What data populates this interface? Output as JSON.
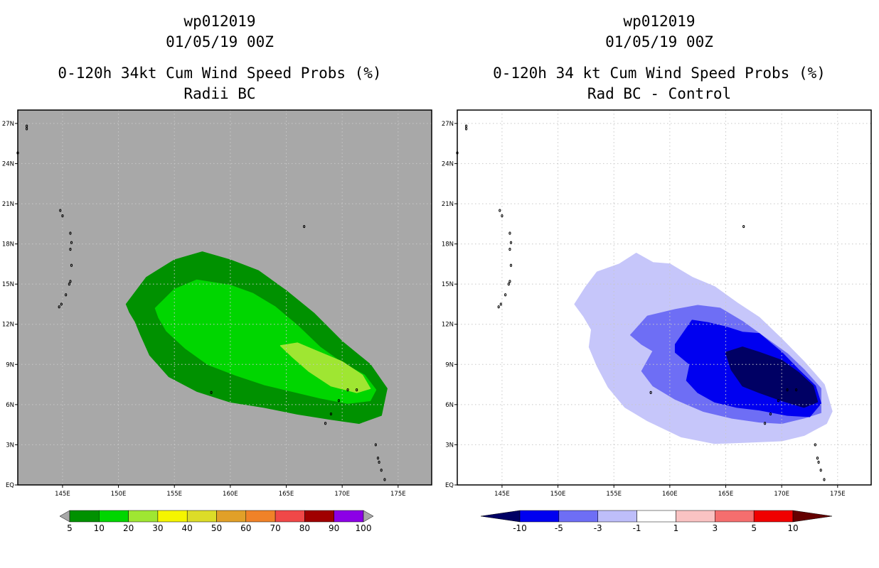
{
  "chart_data": [
    {
      "type": "heatmap",
      "title_lines": [
        "wp012019",
        "01/05/19 00Z",
        "0-120h 34kt Cum Wind Speed Probs (%)",
        "Radii BC"
      ],
      "x_ticks": [
        "145E",
        "150E",
        "155E",
        "160E",
        "165E",
        "170E",
        "175E"
      ],
      "y_ticks": [
        "EQ",
        "3N",
        "6N",
        "9N",
        "12N",
        "15N",
        "18N",
        "21N",
        "24N",
        "27N"
      ],
      "xlim": [
        141,
        178
      ],
      "ylim": [
        0,
        28
      ],
      "background_color": "#a8a8a8",
      "colorbar": {
        "labels": [
          "5",
          "10",
          "20",
          "30",
          "40",
          "50",
          "60",
          "70",
          "80",
          "90",
          "100"
        ],
        "colors": [
          "#009100",
          "#00d600",
          "#9fe632",
          "#f5f500",
          "#dcdc28",
          "#e1a028",
          "#f08228",
          "#f04848",
          "#a00000",
          "#8c00e6"
        ],
        "under_color": "#a8a8a8",
        "over_color": "#a8a8a8"
      },
      "contours": [
        {
          "level": "5-10",
          "color": "#009100",
          "lon": [
            150.7,
            152.5,
            155,
            157.5,
            160,
            162.5,
            165,
            167.5,
            170,
            172.5,
            174,
            173.5,
            171.5,
            169,
            166,
            163,
            160,
            157,
            154.5,
            152.8,
            152,
            151.5,
            151,
            150.8,
            150.7
          ],
          "lat": [
            13.5,
            15.5,
            16.8,
            17.4,
            16.8,
            16,
            14.5,
            12.8,
            10.7,
            9,
            7.2,
            5.2,
            4.6,
            4.9,
            5.3,
            5.8,
            6.2,
            7,
            8.1,
            9.7,
            11.2,
            12.2,
            12.9,
            13.3,
            13.5
          ]
        },
        {
          "level": "10-20",
          "color": "#00d600",
          "lon": [
            153.3,
            155,
            157,
            160,
            162,
            164,
            166,
            168,
            170,
            172,
            173,
            172.5,
            170.5,
            168,
            165.5,
            163,
            160.5,
            158,
            156,
            154.3,
            153.6,
            153.3
          ],
          "lat": [
            13.2,
            14.6,
            15.3,
            14.9,
            14.3,
            13.3,
            11.9,
            10.3,
            9.1,
            8.2,
            7.1,
            6.3,
            6.1,
            6.5,
            7,
            7.5,
            8.2,
            9,
            10.2,
            11.5,
            12.5,
            13.2
          ]
        },
        {
          "level": "20-30",
          "color": "#9fe632",
          "lon": [
            164.5,
            166,
            168,
            170,
            171.8,
            172.5,
            171.3,
            169,
            167,
            165.5,
            164.5
          ],
          "lat": [
            10.4,
            10.6,
            9.9,
            9.2,
            8.2,
            7.2,
            6.9,
            7.4,
            8.5,
            9.6,
            10.4
          ]
        }
      ]
    },
    {
      "type": "heatmap",
      "title_lines": [
        "wp012019",
        "01/05/19 00Z",
        "0-120h 34 kt Cum Wind Speed Probs (%)",
        "Rad BC - Control"
      ],
      "x_ticks": [
        "145E",
        "150E",
        "155E",
        "160E",
        "165E",
        "170E",
        "175E"
      ],
      "y_ticks": [
        "EQ",
        "3N",
        "6N",
        "9N",
        "12N",
        "15N",
        "18N",
        "21N",
        "24N",
        "27N"
      ],
      "xlim": [
        141,
        178
      ],
      "ylim": [
        0,
        28
      ],
      "background_color": "#ffffff",
      "colorbar": {
        "labels": [
          "-10",
          "-5",
          "-3",
          "-1",
          "1",
          "3",
          "5",
          "10"
        ],
        "colors": [
          "#0000f0",
          "#6e6ef5",
          "#bebefa",
          "#ffffff",
          "#fac3c3",
          "#f56e6e",
          "#f00000"
        ],
        "under_color": "#000064",
        "over_color": "#640000"
      },
      "contours": [
        {
          "level": "-3 to -1",
          "color": "#c6c6fa",
          "lon": [
            151.5,
            152.5,
            153.5,
            155.5,
            157,
            158.5,
            160,
            162,
            164,
            166,
            168,
            170,
            172,
            173.8,
            174.5,
            174,
            172,
            170,
            167,
            164,
            161,
            158,
            156,
            154.5,
            153.5,
            152.8,
            153,
            152.3,
            151.5
          ],
          "lat": [
            13.5,
            14.8,
            15.9,
            16.5,
            17.3,
            16.6,
            16.5,
            15.5,
            14.8,
            13.6,
            12.5,
            10.9,
            9.2,
            7.5,
            5.5,
            4.6,
            3.7,
            3.3,
            3.2,
            3.1,
            3.6,
            4.8,
            5.8,
            7.3,
            8.9,
            10.3,
            11.6,
            12.6,
            13.5
          ]
        },
        {
          "level": "-5 to -3",
          "color": "#6e6ef5",
          "lon": [
            156.5,
            158,
            160.5,
            162.5,
            164.5,
            166.5,
            168.5,
            170.5,
            172,
            173.5,
            173.5,
            172,
            170,
            168,
            165.5,
            163,
            160.5,
            158.5,
            157.5,
            158.5,
            157.5,
            156.5
          ],
          "lat": [
            11.2,
            12.6,
            13.1,
            13.4,
            13.2,
            12.2,
            11,
            9.8,
            8.6,
            7.2,
            5.4,
            5,
            4.6,
            4.7,
            5,
            5.5,
            6.4,
            7.4,
            8.5,
            10,
            10.5,
            11.2
          ]
        },
        {
          "level": "-10 to -5",
          "color": "#0000f0",
          "lon": [
            160.5,
            162,
            163.5,
            165,
            166.5,
            168,
            170,
            171.5,
            173,
            173.5,
            172.5,
            170.5,
            168,
            166,
            164,
            162.5,
            161.5,
            161.8,
            160.5,
            160.5
          ],
          "lat": [
            10.5,
            12.3,
            12.1,
            11.8,
            11.4,
            11.3,
            9.9,
            8.6,
            7.4,
            6.1,
            5.1,
            5.2,
            5.6,
            5.8,
            6.2,
            6.9,
            7.8,
            9,
            9.9,
            10.5
          ]
        },
        {
          "level": "< -10",
          "color": "#000064",
          "lon": [
            165,
            166.5,
            168,
            170,
            171.5,
            172.8,
            173.2,
            172,
            170,
            168,
            166.5,
            165.5,
            165
          ],
          "lat": [
            9.9,
            10.3,
            9.9,
            9.3,
            8.4,
            7.4,
            6.2,
            5.8,
            6.3,
            6.9,
            7.4,
            8.6,
            9.9
          ]
        }
      ]
    }
  ]
}
